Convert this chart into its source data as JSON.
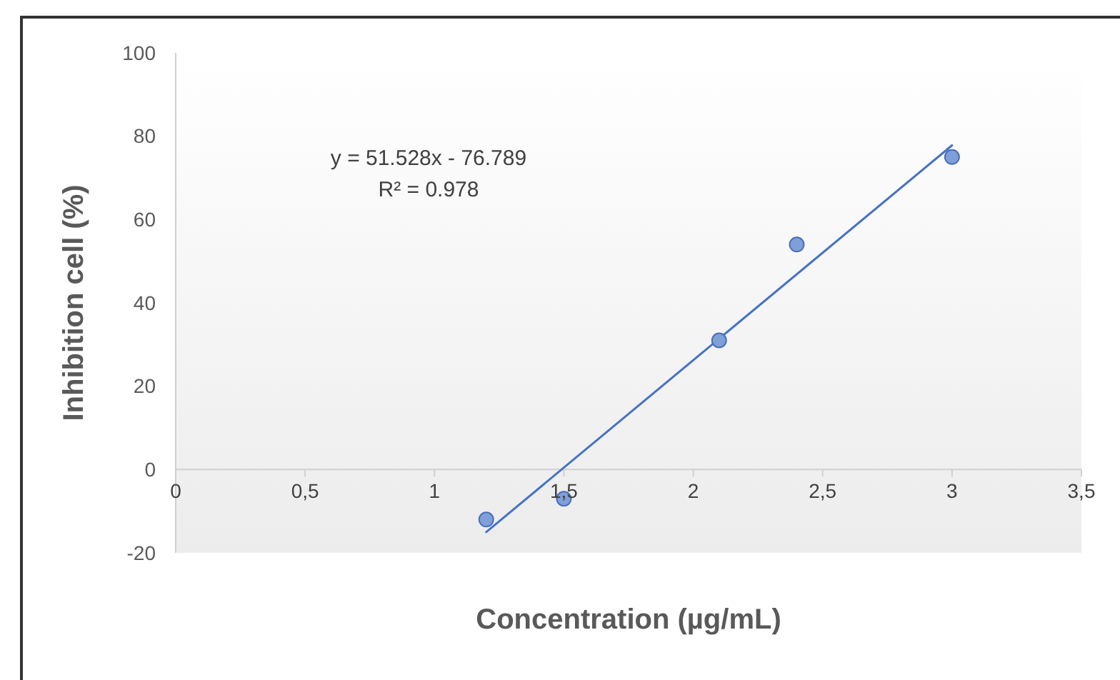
{
  "chart_data": {
    "type": "scatter",
    "xlabel": "Concentration (µg/mL)",
    "ylabel": "Inhibition cell (%)",
    "x": [
      1.2,
      1.5,
      2.1,
      2.4,
      3.0
    ],
    "series": [
      {
        "color": "#7f9fd9",
        "values": [
          -12,
          -7,
          31,
          54,
          75
        ],
        "marker": "circle"
      },
      {
        "type": "line",
        "color": "#4472c4",
        "x": [
          1.2,
          3.0
        ],
        "values": [
          -15,
          77.8
        ],
        "line_style": "solid"
      }
    ],
    "annotations": [
      "y = 51.528x - 76.789",
      "R² = 0.978"
    ],
    "xlim": [
      0,
      3.5
    ],
    "xticks": [
      0,
      {
        "value": 0.5,
        "label": "0,5"
      },
      1,
      {
        "value": 1.5,
        "label": "1,5"
      },
      2,
      {
        "value": 2.5,
        "label": "2,5"
      },
      3,
      {
        "value": 3.5,
        "label": "3,5"
      }
    ],
    "ylim": [
      -20,
      100
    ],
    "yticks": [
      -20,
      0,
      20,
      40,
      60,
      80,
      100
    ]
  }
}
